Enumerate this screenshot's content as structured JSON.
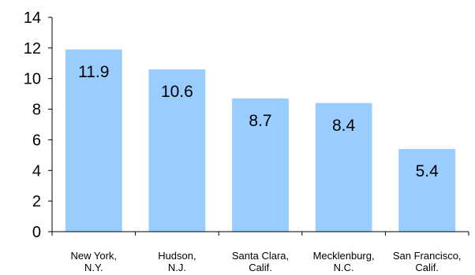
{
  "chart_data": {
    "type": "bar",
    "categories": [
      [
        "New York,",
        "N.Y."
      ],
      [
        "Hudson,",
        "N.J."
      ],
      [
        "Santa Clara,",
        "Calif."
      ],
      [
        "Mecklenburg,",
        "N.C."
      ],
      [
        "San Francisco,",
        "Calif."
      ]
    ],
    "values": [
      11.9,
      10.6,
      8.7,
      8.4,
      5.4
    ],
    "data_labels": [
      "11.9",
      "10.6",
      "8.7",
      "8.4",
      "5.4"
    ],
    "ylim": [
      0,
      14
    ],
    "yticks": [
      0,
      2,
      4,
      6,
      8,
      10,
      12,
      14
    ],
    "grid": false,
    "legend": "none",
    "bar_color": "#99ccff"
  }
}
